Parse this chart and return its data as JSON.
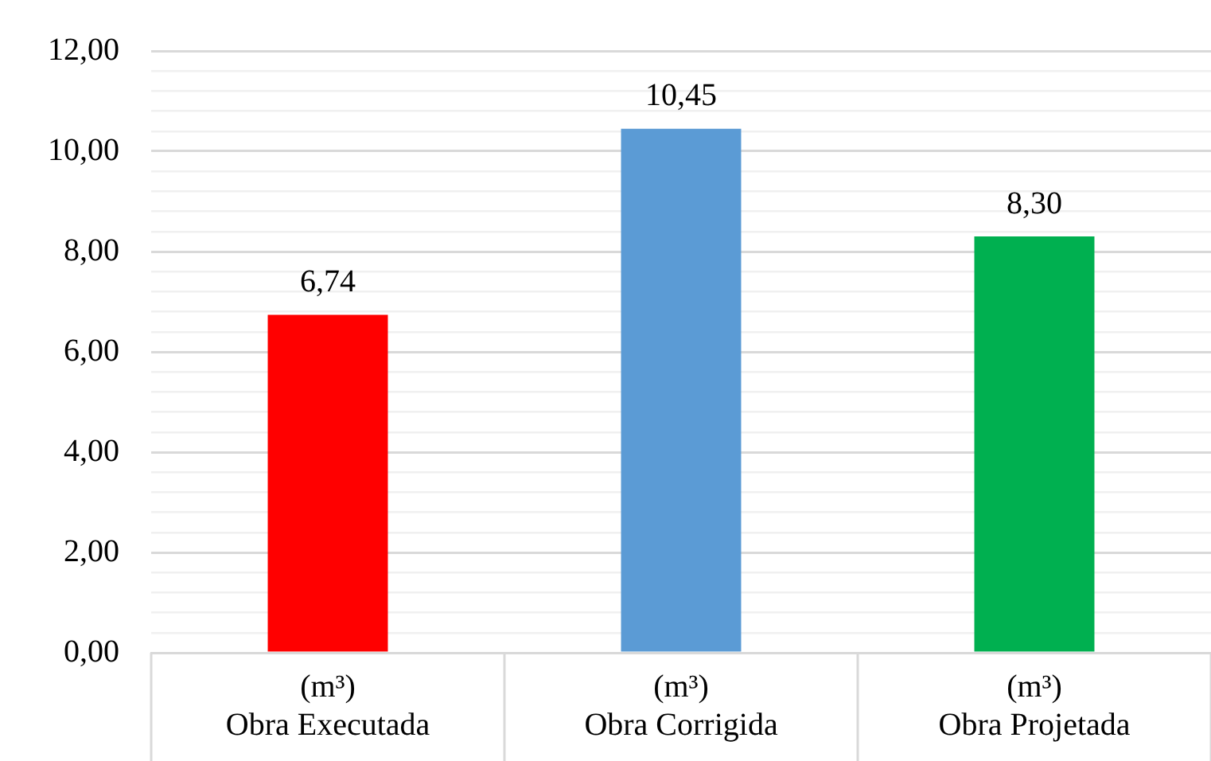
{
  "chart_data": {
    "type": "bar",
    "categories": [
      "(m³)\nObra Executada",
      "(m³)\nObra Corrigida",
      "(m³)\nObra Projetada"
    ],
    "values": [
      6.74,
      10.45,
      8.3
    ],
    "colors": [
      "#ff0000",
      "#5b9bd5",
      "#00b050"
    ],
    "value_labels": [
      "6,74",
      "10,45",
      "8,30"
    ],
    "ylim": [
      0,
      12
    ],
    "yticks": [
      {
        "value": 0,
        "label": "0,00"
      },
      {
        "value": 0.4,
        "label": null
      },
      {
        "value": 0.8,
        "label": null
      },
      {
        "value": 1.2,
        "label": null
      },
      {
        "value": 1.6,
        "label": null
      },
      {
        "value": 2,
        "label": "2,00"
      },
      {
        "value": 2.4,
        "label": null
      },
      {
        "value": 2.8,
        "label": null
      },
      {
        "value": 3.2,
        "label": null
      },
      {
        "value": 3.6,
        "label": null
      },
      {
        "value": 4,
        "label": "4,00"
      },
      {
        "value": 4.4,
        "label": null
      },
      {
        "value": 4.8,
        "label": null
      },
      {
        "value": 5.2,
        "label": null
      },
      {
        "value": 5.6,
        "label": null
      },
      {
        "value": 6,
        "label": "6,00"
      },
      {
        "value": 6.4,
        "label": null
      },
      {
        "value": 6.8,
        "label": null
      },
      {
        "value": 7.2,
        "label": null
      },
      {
        "value": 7.6,
        "label": null
      },
      {
        "value": 8,
        "label": "8,00"
      },
      {
        "value": 8.4,
        "label": null
      },
      {
        "value": 8.8,
        "label": null
      },
      {
        "value": 9.2,
        "label": null
      },
      {
        "value": 9.6,
        "label": null
      },
      {
        "value": 10,
        "label": "10,00"
      },
      {
        "value": 10.4,
        "label": null
      },
      {
        "value": 10.8,
        "label": null
      },
      {
        "value": 11.2,
        "label": null
      },
      {
        "value": 11.6,
        "label": null
      },
      {
        "value": 12,
        "label": "12,00"
      }
    ],
    "grid": "y",
    "legend": false
  }
}
